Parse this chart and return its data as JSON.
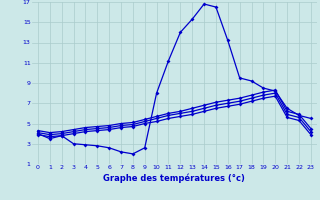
{
  "xlabel": "Graphe des températures (°c)",
  "bg_color": "#cce8e8",
  "grid_color": "#aacccc",
  "line_color": "#0000cc",
  "xlim": [
    -0.5,
    23.5
  ],
  "ylim": [
    1,
    17
  ],
  "xticks": [
    0,
    1,
    2,
    3,
    4,
    5,
    6,
    7,
    8,
    9,
    10,
    11,
    12,
    13,
    14,
    15,
    16,
    17,
    18,
    19,
    20,
    21,
    22,
    23
  ],
  "yticks": [
    1,
    3,
    5,
    7,
    9,
    11,
    13,
    15,
    17
  ],
  "line1_x": [
    0,
    1,
    2,
    3,
    4,
    5,
    6,
    7,
    8,
    9,
    10,
    11,
    12,
    13,
    14,
    15,
    16,
    17,
    18,
    19,
    20,
    21,
    22,
    23
  ],
  "line1_y": [
    4.0,
    3.5,
    3.8,
    3.0,
    2.9,
    2.8,
    2.6,
    2.2,
    2.0,
    2.6,
    8.0,
    11.2,
    14.0,
    15.3,
    16.8,
    16.5,
    13.2,
    9.5,
    9.2,
    8.5,
    8.2,
    6.5,
    5.8,
    5.5
  ],
  "line2_x": [
    0,
    1,
    2,
    3,
    4,
    5,
    6,
    7,
    8,
    9,
    10,
    11,
    12,
    13,
    14,
    15,
    16,
    17,
    18,
    19,
    20,
    21,
    22,
    23
  ],
  "line2_y": [
    4.3,
    4.1,
    4.2,
    4.4,
    4.6,
    4.7,
    4.8,
    5.0,
    5.1,
    5.4,
    5.7,
    6.0,
    6.2,
    6.5,
    6.8,
    7.1,
    7.3,
    7.5,
    7.8,
    8.1,
    8.3,
    6.2,
    5.9,
    4.5
  ],
  "line3_x": [
    0,
    1,
    2,
    3,
    4,
    5,
    6,
    7,
    8,
    9,
    10,
    11,
    12,
    13,
    14,
    15,
    16,
    17,
    18,
    19,
    20,
    21,
    22,
    23
  ],
  "line3_y": [
    4.1,
    3.9,
    4.0,
    4.2,
    4.4,
    4.5,
    4.6,
    4.8,
    4.9,
    5.2,
    5.5,
    5.8,
    6.0,
    6.2,
    6.5,
    6.8,
    7.0,
    7.2,
    7.5,
    7.8,
    8.0,
    5.9,
    5.6,
    4.2
  ],
  "line4_x": [
    0,
    1,
    2,
    3,
    4,
    5,
    6,
    7,
    8,
    9,
    10,
    11,
    12,
    13,
    14,
    15,
    16,
    17,
    18,
    19,
    20,
    21,
    22,
    23
  ],
  "line4_y": [
    3.9,
    3.7,
    3.8,
    4.0,
    4.2,
    4.3,
    4.4,
    4.6,
    4.7,
    5.0,
    5.2,
    5.5,
    5.7,
    5.9,
    6.2,
    6.5,
    6.7,
    6.9,
    7.2,
    7.5,
    7.7,
    5.6,
    5.3,
    3.9
  ]
}
